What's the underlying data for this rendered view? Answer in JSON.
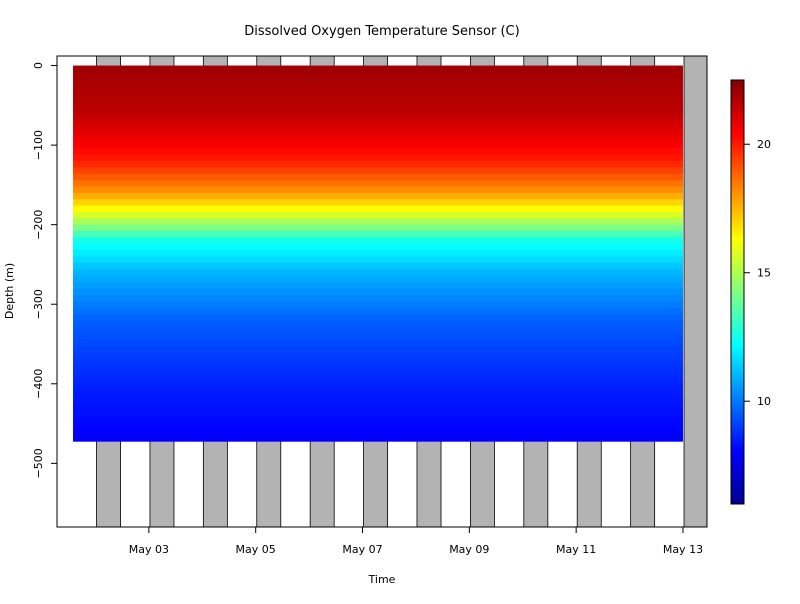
{
  "chart_data": {
    "type": "heatmap",
    "title": "Dissolved Oxygen Temperature Sensor (C)",
    "xlabel": "Time",
    "ylabel": "Depth (m)",
    "x_ticks": [
      "May 03",
      "May 05",
      "May 07",
      "May 09",
      "May 11",
      "May 13"
    ],
    "x_tick_days": [
      3,
      5,
      7,
      9,
      11,
      13
    ],
    "xlim_days": [
      1.28,
      13.45
    ],
    "y_ticks": [
      0,
      -100,
      -200,
      -300,
      -400,
      -500
    ],
    "ylim": [
      -580,
      12
    ],
    "colorbar": {
      "label": "",
      "ticks": [
        10,
        15,
        20
      ],
      "range": [
        6,
        22.5
      ],
      "colors": [
        "#00008F",
        "#0000FF",
        "#0080FF",
        "#00FFFF",
        "#80FF80",
        "#FFFF00",
        "#FF8000",
        "#FF0000",
        "#800000"
      ]
    },
    "night_shading": {
      "color": "#b3b3b3",
      "intervals_days": [
        [
          2.02,
          2.47
        ],
        [
          3.02,
          3.47
        ],
        [
          4.02,
          4.47
        ],
        [
          5.02,
          5.47
        ],
        [
          6.02,
          6.47
        ],
        [
          7.02,
          7.47
        ],
        [
          8.02,
          8.47
        ],
        [
          9.02,
          9.47
        ],
        [
          10.02,
          10.47
        ],
        [
          11.02,
          11.47
        ],
        [
          12.02,
          12.47
        ],
        [
          13.02,
          13.45
        ]
      ]
    },
    "data_extent": {
      "start_day": 1.58,
      "end_day": 13.0,
      "max_depth_m": -465
    },
    "temperature_profile": [
      {
        "depth": 0,
        "value": 22.0
      },
      {
        "depth": -60,
        "value": 21.5
      },
      {
        "depth": -120,
        "value": 20.0
      },
      {
        "depth": -160,
        "value": 18.0
      },
      {
        "depth": -190,
        "value": 15.5
      },
      {
        "depth": -220,
        "value": 12.5
      },
      {
        "depth": -260,
        "value": 11.0
      },
      {
        "depth": -320,
        "value": 9.6
      },
      {
        "depth": -400,
        "value": 8.6
      },
      {
        "depth": -465,
        "value": 8.0
      }
    ]
  }
}
